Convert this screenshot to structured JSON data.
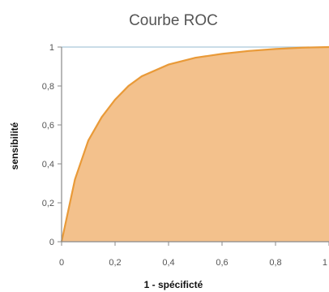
{
  "chart_data": {
    "type": "area",
    "title": "Courbe ROC",
    "xlabel": "1 - spécificté",
    "ylabel": "sensibilité",
    "xlim": [
      0,
      1
    ],
    "ylim": [
      0,
      1
    ],
    "x_ticks": [
      "0",
      "0,2",
      "0,4",
      "0,6",
      "0,8",
      "1"
    ],
    "y_ticks": [
      "0",
      "0,2",
      "0,4",
      "0,6",
      "0,8",
      "1"
    ],
    "grid": false,
    "legend": "none",
    "series": [
      {
        "x": [
          0,
          0.05,
          0.1,
          0.15,
          0.2,
          0.25,
          0.3,
          0.4,
          0.5,
          0.6,
          0.7,
          0.8,
          0.9,
          1
        ],
        "y": [
          0,
          0.32,
          0.52,
          0.64,
          0.73,
          0.8,
          0.85,
          0.91,
          0.945,
          0.965,
          0.98,
          0.99,
          0.997,
          1
        ]
      }
    ],
    "colors": {
      "fill": "#F3C18C",
      "line": "#E99A38",
      "axis": "#8A8A8A",
      "top_border": "#A9C8D9"
    }
  }
}
